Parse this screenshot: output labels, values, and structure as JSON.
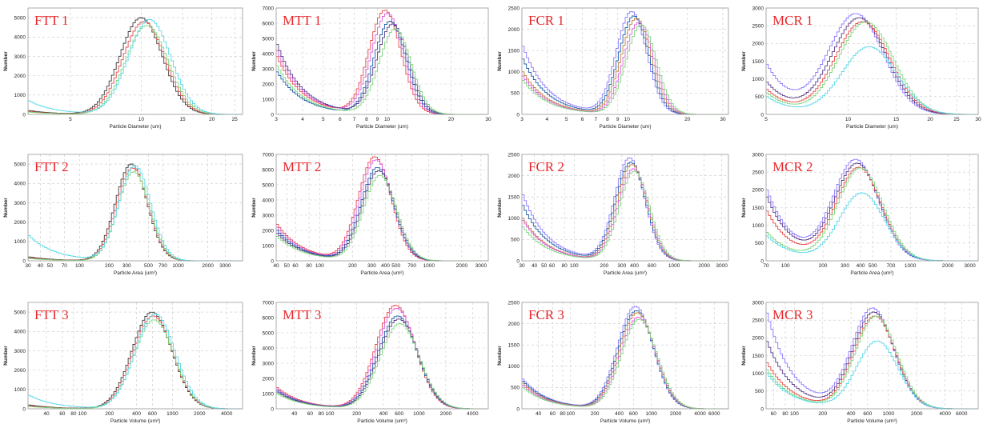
{
  "colors": {
    "grid": "#c9c9c9",
    "frame": "#9a9a9a",
    "title": "#e8262a",
    "series": [
      "#e8494a",
      "#1f5fa8",
      "#5a3b8a",
      "#2ab3d9",
      "#7cd67c",
      "#e05ce0",
      "#8c7bff",
      "#58d8e8",
      "#c08040"
    ]
  },
  "chart_data": [
    {
      "type": "line",
      "title": "FTT 1",
      "xlabel": "Particle Diameter (um)",
      "ylabel": "Number",
      "xscale": "log",
      "xlim": [
        3.3,
        27
      ],
      "ylim": [
        0,
        5500
      ],
      "yticks": [
        0,
        1000,
        2000,
        3000,
        4000,
        5000
      ],
      "xticks": [
        5,
        10,
        15,
        20,
        25
      ],
      "peak_x": 10.3,
      "peak_values": [
        5000,
        4800,
        4600,
        4900
      ],
      "tail_values": [
        200,
        150,
        120,
        700
      ],
      "width": 0.09,
      "series_colors": [
        "#3a3a3a",
        "#e8494a",
        "#7cd67c",
        "#58d8e8"
      ]
    },
    {
      "type": "line",
      "title": "MTT 1",
      "xlabel": "Particle Diameter (um)",
      "ylabel": "Number",
      "xscale": "log",
      "xlim": [
        3,
        30
      ],
      "ylim": [
        0,
        7000
      ],
      "yticks": [
        0,
        1000,
        2000,
        3000,
        4000,
        5000,
        6000,
        7000
      ],
      "xticks": [
        3,
        4,
        5,
        6,
        7,
        8,
        9,
        10,
        20,
        30
      ],
      "peak_x": 10.2,
      "peak_values": [
        6800,
        6600,
        6100,
        5900,
        5600
      ],
      "tail_values": [
        3800,
        4200,
        2800,
        4600,
        3200
      ],
      "width": 0.075,
      "series_colors": [
        "#e8494a",
        "#e05ce0",
        "#1f5fa8",
        "#5a3b8a",
        "#7cd67c"
      ]
    },
    {
      "type": "line",
      "title": "FCR 1",
      "xlabel": "Particle Diameter (um)",
      "ylabel": "Number",
      "xscale": "log",
      "xlim": [
        3,
        32
      ],
      "ylim": [
        0,
        2500
      ],
      "yticks": [
        0,
        500,
        1000,
        1500,
        2000,
        2500
      ],
      "xticks": [
        3,
        4,
        5,
        6,
        7,
        8,
        9,
        10,
        20,
        30
      ],
      "peak_x": 11,
      "peak_values": [
        2400,
        2300,
        2250,
        2150,
        2100
      ],
      "tail_values": [
        1600,
        1300,
        1000,
        900,
        800
      ],
      "width": 0.075,
      "series_colors": [
        "#8c7bff",
        "#1f5fa8",
        "#c08040",
        "#e05ce0",
        "#7cd67c"
      ]
    },
    {
      "type": "line",
      "title": "MCR 1",
      "xlabel": "Particle Diameter (um)",
      "ylabel": "Number",
      "xscale": "log",
      "xlim": [
        5,
        30
      ],
      "ylim": [
        0,
        3000
      ],
      "yticks": [
        0,
        500,
        1000,
        1500,
        2000,
        2500,
        3000
      ],
      "xticks": [
        5,
        10,
        15,
        20,
        25,
        30
      ],
      "peak_x": 11.2,
      "peak_values": [
        2800,
        2700,
        2600,
        2600,
        1900
      ],
      "tail_values": [
        1400,
        900,
        700,
        600,
        500
      ],
      "width": 0.1,
      "series_colors": [
        "#8c7bff",
        "#5a3b8a",
        "#e8494a",
        "#7cd67c",
        "#58d8e8"
      ]
    },
    {
      "type": "line",
      "title": "FTT 2",
      "xlabel": "Particle Area (um²)",
      "ylabel": "Number",
      "xscale": "log",
      "xlim": [
        30,
        4500
      ],
      "ylim": [
        0,
        5500
      ],
      "yticks": [
        0,
        1000,
        2000,
        3000,
        4000,
        5000
      ],
      "xticks": [
        30,
        40,
        50,
        70,
        100,
        200,
        300,
        500,
        700,
        1000,
        2000,
        3000
      ],
      "peak_x": 340,
      "peak_values": [
        5000,
        4800,
        4600,
        4900
      ],
      "tail_values": [
        200,
        150,
        120,
        1300
      ],
      "width": 0.16,
      "series_colors": [
        "#3a3a3a",
        "#e8494a",
        "#7cd67c",
        "#58d8e8"
      ]
    },
    {
      "type": "line",
      "title": "MTT 2",
      "xlabel": "Particle Area (um²)",
      "ylabel": "Number",
      "xscale": "log",
      "xlim": [
        40,
        3500
      ],
      "ylim": [
        0,
        7000
      ],
      "yticks": [
        0,
        1000,
        2000,
        3000,
        4000,
        5000,
        6000,
        7000
      ],
      "xticks": [
        40,
        50,
        60,
        80,
        100,
        200,
        300,
        400,
        500,
        700,
        1000,
        2000,
        3000
      ],
      "peak_x": 330,
      "peak_values": [
        6800,
        6600,
        6100,
        5900,
        5600
      ],
      "tail_values": [
        2400,
        2200,
        2000,
        1800,
        1600
      ],
      "width": 0.15,
      "series_colors": [
        "#e8494a",
        "#e05ce0",
        "#1f5fa8",
        "#5a3b8a",
        "#7cd67c"
      ]
    },
    {
      "type": "line",
      "title": "FCR 2",
      "xlabel": "Particle Area (um²)",
      "ylabel": "Number",
      "xscale": "log",
      "xlim": [
        30,
        3500
      ],
      "ylim": [
        0,
        2500
      ],
      "yticks": [
        0,
        500,
        1000,
        1500,
        2000,
        2500
      ],
      "xticks": [
        30,
        40,
        50,
        60,
        80,
        100,
        200,
        300,
        400,
        600,
        1000,
        2000,
        3000
      ],
      "peak_x": 370,
      "peak_values": [
        2400,
        2300,
        2250,
        2150,
        2100
      ],
      "tail_values": [
        1550,
        1300,
        1000,
        950,
        800
      ],
      "width": 0.15,
      "series_colors": [
        "#8c7bff",
        "#1f5fa8",
        "#c08040",
        "#e05ce0",
        "#7cd67c"
      ]
    },
    {
      "type": "line",
      "title": "MCR 2",
      "xlabel": "Particle Area (um²)",
      "ylabel": "Number",
      "xscale": "log",
      "xlim": [
        70,
        3500
      ],
      "ylim": [
        0,
        3000
      ],
      "yticks": [
        0,
        500,
        1000,
        1500,
        2000,
        2500,
        3000
      ],
      "xticks": [
        70,
        100,
        200,
        300,
        400,
        500,
        700,
        1000,
        2000,
        3000
      ],
      "peak_x": 380,
      "peak_values": [
        2800,
        2700,
        2600,
        2600,
        1900
      ],
      "tail_values": [
        2000,
        1800,
        1400,
        800,
        700
      ],
      "width": 0.18,
      "series_colors": [
        "#8c7bff",
        "#5a3b8a",
        "#e8494a",
        "#7cd67c",
        "#58d8e8"
      ]
    },
    {
      "type": "line",
      "title": "FTT 3",
      "xlabel": "Particle Volume (um³)",
      "ylabel": "Number",
      "xscale": "log",
      "xlim": [
        25,
        6000
      ],
      "ylim": [
        0,
        5500
      ],
      "yticks": [
        0,
        1000,
        2000,
        3000,
        4000,
        5000
      ],
      "xticks": [
        40,
        60,
        80,
        100,
        200,
        400,
        600,
        1000,
        2000,
        4000
      ],
      "peak_x": 600,
      "peak_values": [
        5000,
        4800,
        4600,
        4900
      ],
      "tail_values": [
        200,
        150,
        120,
        700
      ],
      "width": 0.22,
      "series_colors": [
        "#3a3a3a",
        "#e8494a",
        "#7cd67c",
        "#58d8e8"
      ]
    },
    {
      "type": "line",
      "title": "MTT 3",
      "xlabel": "Particle Volume (um³)",
      "ylabel": "Number",
      "xscale": "log",
      "xlim": [
        25,
        6000
      ],
      "ylim": [
        0,
        7000
      ],
      "yticks": [
        0,
        1000,
        2000,
        3000,
        4000,
        5000,
        6000,
        7000
      ],
      "xticks": [
        40,
        60,
        80,
        100,
        200,
        400,
        600,
        1000,
        2000,
        4000
      ],
      "peak_x": 560,
      "peak_values": [
        6800,
        6600,
        6100,
        5900,
        5600
      ],
      "tail_values": [
        1400,
        1300,
        1200,
        1100,
        1000
      ],
      "width": 0.22,
      "series_colors": [
        "#e8494a",
        "#e05ce0",
        "#1f5fa8",
        "#5a3b8a",
        "#7cd67c"
      ]
    },
    {
      "type": "line",
      "title": "FCR 3",
      "xlabel": "Particle Volume (um³)",
      "ylabel": "Number",
      "xscale": "log",
      "xlim": [
        25,
        9000
      ],
      "ylim": [
        0,
        2500
      ],
      "yticks": [
        0,
        500,
        1000,
        1500,
        2000,
        2500
      ],
      "xticks": [
        40,
        60,
        80,
        100,
        200,
        400,
        600,
        1000,
        2000,
        4000,
        6000
      ],
      "peak_x": 650,
      "peak_values": [
        2400,
        2300,
        2250,
        2150,
        2100
      ],
      "tail_values": [
        700,
        650,
        600,
        550,
        500
      ],
      "width": 0.22,
      "series_colors": [
        "#8c7bff",
        "#1f5fa8",
        "#c08040",
        "#e05ce0",
        "#7cd67c"
      ]
    },
    {
      "type": "line",
      "title": "MCR 3",
      "xlabel": "Particle Volume (um³)",
      "ylabel": "Number",
      "xscale": "log",
      "xlim": [
        50,
        9000
      ],
      "ylim": [
        0,
        3000
      ],
      "yticks": [
        0,
        500,
        1000,
        1500,
        2000,
        2500,
        3000
      ],
      "xticks": [
        60,
        80,
        100,
        200,
        400,
        600,
        1000,
        2000,
        4000,
        6000
      ],
      "peak_x": 700,
      "peak_values": [
        2800,
        2700,
        2600,
        2600,
        1900
      ],
      "tail_values": [
        2700,
        1900,
        1300,
        1100,
        1000
      ],
      "width": 0.22,
      "series_colors": [
        "#8c7bff",
        "#5a3b8a",
        "#e8494a",
        "#7cd67c",
        "#58d8e8"
      ]
    }
  ]
}
